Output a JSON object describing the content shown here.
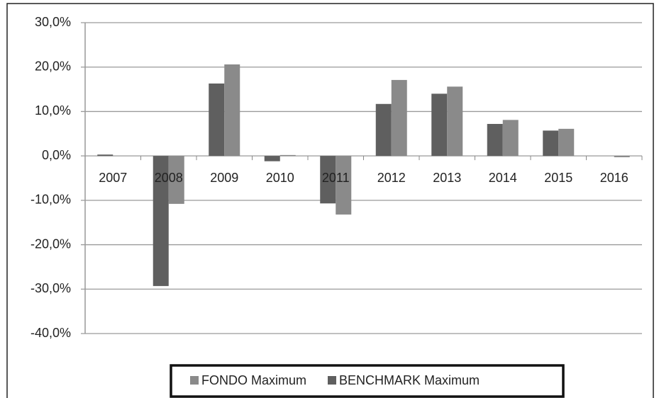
{
  "chart_data": {
    "type": "bar",
    "categories": [
      "2007",
      "2008",
      "2009",
      "2010",
      "2011",
      "2012",
      "2013",
      "2014",
      "2015",
      "2016"
    ],
    "series": [
      {
        "name": "FONDO Maximum",
        "color": "#8a8a8a",
        "values": [
          0,
          -10.8,
          20.6,
          0.2,
          -13.2,
          17.1,
          15.6,
          8.1,
          6.1,
          -0.3
        ]
      },
      {
        "name": "BENCHMARK Maximum",
        "color": "#5f5f5f",
        "values": [
          0.3,
          -29.3,
          16.3,
          -1.2,
          -10.7,
          11.7,
          14.0,
          7.2,
          5.7,
          0
        ]
      }
    ],
    "ylim": [
      -40,
      30
    ],
    "yticks": [
      {
        "value": -40,
        "label": "-40,0%"
      },
      {
        "value": -30,
        "label": "-30,0%"
      },
      {
        "value": -20,
        "label": "-20,0%"
      },
      {
        "value": -10,
        "label": "-10,0%"
      },
      {
        "value": 0,
        "label": "0,0%"
      },
      {
        "value": 10,
        "label": "10,0%"
      },
      {
        "value": 20,
        "label": "20,0%"
      },
      {
        "value": 30,
        "label": "30,0%"
      }
    ],
    "grid": true,
    "legend": "bottom"
  }
}
